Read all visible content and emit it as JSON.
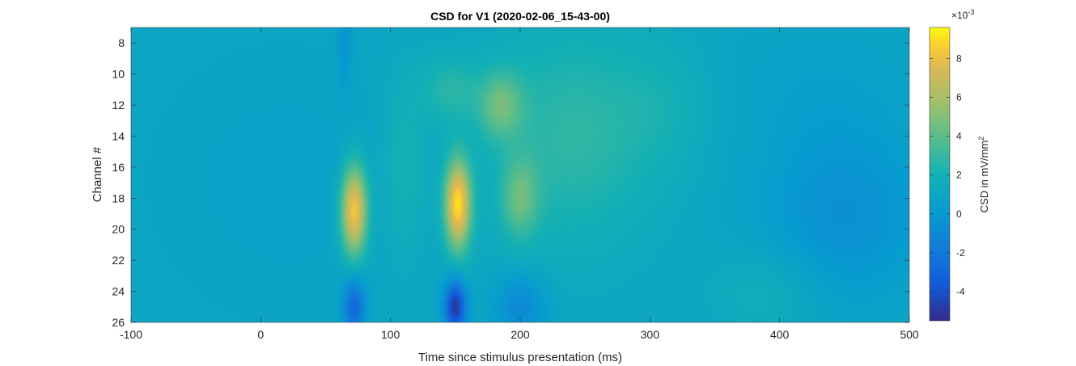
{
  "chart_data": {
    "type": "heatmap",
    "title": "CSD for V1 (2020-02-06_15-43-00)",
    "xlabel": "Time since stimulus presentation (ms)",
    "ylabel": "Channel #",
    "xlim": [
      -100,
      500
    ],
    "ylim": [
      7,
      26
    ],
    "y_direction": "reversed",
    "xticks": [
      -100,
      0,
      100,
      200,
      300,
      400,
      500
    ],
    "xtick_labels": [
      "-100",
      "0",
      "100",
      "200",
      "300",
      "400",
      "500"
    ],
    "yticks": [
      8,
      10,
      12,
      14,
      16,
      18,
      20,
      22,
      24,
      26
    ],
    "ytick_labels": [
      "8",
      "10",
      "12",
      "14",
      "16",
      "18",
      "20",
      "22",
      "24",
      "26"
    ],
    "colormap": "parula",
    "colorbar": {
      "label": "CSD in mV/mm",
      "label_superscript": "2",
      "exponent_label": "×10",
      "exponent_value": "-3",
      "range": [
        -5.5,
        9.6
      ],
      "ticks": [
        -4,
        -2,
        0,
        2,
        4,
        6,
        8
      ],
      "tick_labels": [
        "-4",
        "-2",
        "0",
        "2",
        "4",
        "6",
        "8"
      ],
      "units_scale": 0.001
    },
    "baseline": 1.0,
    "features": [
      {
        "t": 72,
        "ch": 18.8,
        "st": 7,
        "sc": 2.0,
        "v": 7.6
      },
      {
        "t": 152,
        "ch": 18.4,
        "st": 7,
        "sc": 2.0,
        "v": 8.0
      },
      {
        "t": 150,
        "ch": 25.0,
        "st": 6,
        "sc": 1.2,
        "v": -6.0
      },
      {
        "t": 72,
        "ch": 25.0,
        "st": 6,
        "sc": 1.3,
        "v": -3.8
      },
      {
        "t": 200,
        "ch": 25.0,
        "st": 14,
        "sc": 1.5,
        "v": -2.0
      },
      {
        "t": 65,
        "ch": 8.0,
        "st": 4,
        "sc": 2.0,
        "v": -1.2
      },
      {
        "t": 185,
        "ch": 12.0,
        "st": 12,
        "sc": 1.5,
        "v": 3.0
      },
      {
        "t": 200,
        "ch": 18.0,
        "st": 10,
        "sc": 1.8,
        "v": 2.8
      },
      {
        "t": 145,
        "ch": 11.0,
        "st": 16,
        "sc": 1.5,
        "v": 1.5
      },
      {
        "t": 240,
        "ch": 14.0,
        "st": 45,
        "sc": 5.0,
        "v": 1.8
      },
      {
        "t": 110,
        "ch": 16.0,
        "st": 12,
        "sc": 4.0,
        "v": 1.2
      },
      {
        "t": 310,
        "ch": 12.0,
        "st": 25,
        "sc": 3.0,
        "v": 0.7
      },
      {
        "t": 450,
        "ch": 19.0,
        "st": 45,
        "sc": 4.0,
        "v": -1.5
      },
      {
        "t": 430,
        "ch": 11.0,
        "st": 50,
        "sc": 3.0,
        "v": -0.4
      },
      {
        "t": 20,
        "ch": 17.0,
        "st": 60,
        "sc": 5.0,
        "v": -0.4
      },
      {
        "t": 390,
        "ch": 24.0,
        "st": 30,
        "sc": 2.0,
        "v": 0.8
      }
    ]
  }
}
